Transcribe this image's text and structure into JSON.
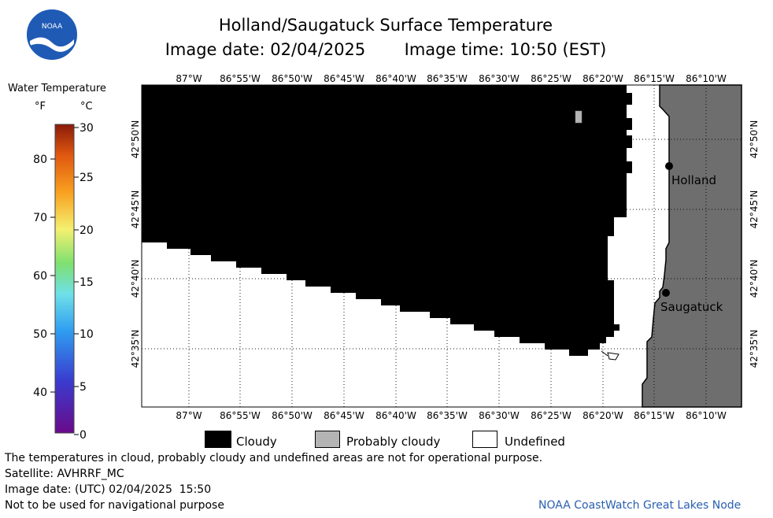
{
  "header": {
    "title": "Holland/Saugatuck Surface Temperature",
    "image_date_label": "Image date: 02/04/2025",
    "image_time_label": "Image time: 10:50 (EST)"
  },
  "logo": {
    "text": "NOAA",
    "icon": "noaa-logo-icon"
  },
  "colorbar": {
    "title": "Water Temperature",
    "unit_f": "°F",
    "unit_c": "°C",
    "f_ticks": [
      "80",
      "70",
      "60",
      "50",
      "40"
    ],
    "c_ticks": [
      "30",
      "25",
      "20",
      "15",
      "10",
      "5",
      "0"
    ]
  },
  "map": {
    "lon_ticks_top": [
      "87°W",
      "86°55'W",
      "86°50'W",
      "86°45'W",
      "86°40'W",
      "86°35'W",
      "86°30'W",
      "86°25'W",
      "86°20'W",
      "86°15'W",
      "86°10'W"
    ],
    "lon_ticks_bottom": [
      "87°W",
      "86°55'W",
      "86°50'W",
      "86°45'W",
      "86°40'W",
      "86°35'W",
      "86°30'W",
      "86°25'W",
      "86°20'W",
      "86°15'W",
      "86°10'W"
    ],
    "lat_ticks": [
      "42°50'N",
      "42°45'N",
      "42°40'N",
      "42°35'N"
    ],
    "places": [
      {
        "name": "Holland"
      },
      {
        "name": "Saugatuck"
      }
    ],
    "colors": {
      "cloudy": "#000000",
      "probably_cloudy": "#b4b4b4",
      "undefined": "#ffffff",
      "land": "#6e6e6e"
    }
  },
  "legend": {
    "cloudy": "Cloudy",
    "probably_cloudy": "Probably cloudy",
    "undefined": "Undefined"
  },
  "footer": {
    "note": "The temperatures in cloud, probably cloudy and undefined areas are not for operational purpose.",
    "satellite": "Satellite: AVHRRF_MC",
    "utc_date": "Image date: (UTC) 02/04/2025  15:50",
    "warning": "Not to be used for navigational purpose",
    "credit": "NOAA CoastWatch Great Lakes Node"
  }
}
